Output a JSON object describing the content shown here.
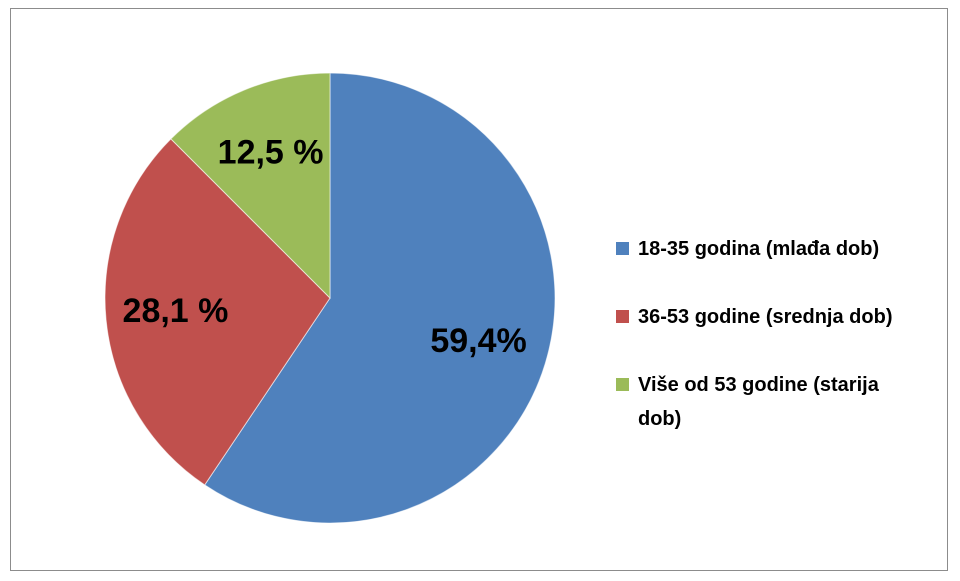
{
  "chart_data": {
    "type": "pie",
    "categories": [
      "18-35 godina (mlađa dob)",
      "36-53 godine (srednja dob)",
      "Više od 53 godine (starija dob)"
    ],
    "values": [
      59.4,
      28.1,
      12.5
    ],
    "value_labels": [
      "59,4%",
      "28,1 %",
      "12,5 %"
    ],
    "colors": [
      "#4f81bd",
      "#c0504d",
      "#9bbb59"
    ],
    "legend": "right"
  }
}
